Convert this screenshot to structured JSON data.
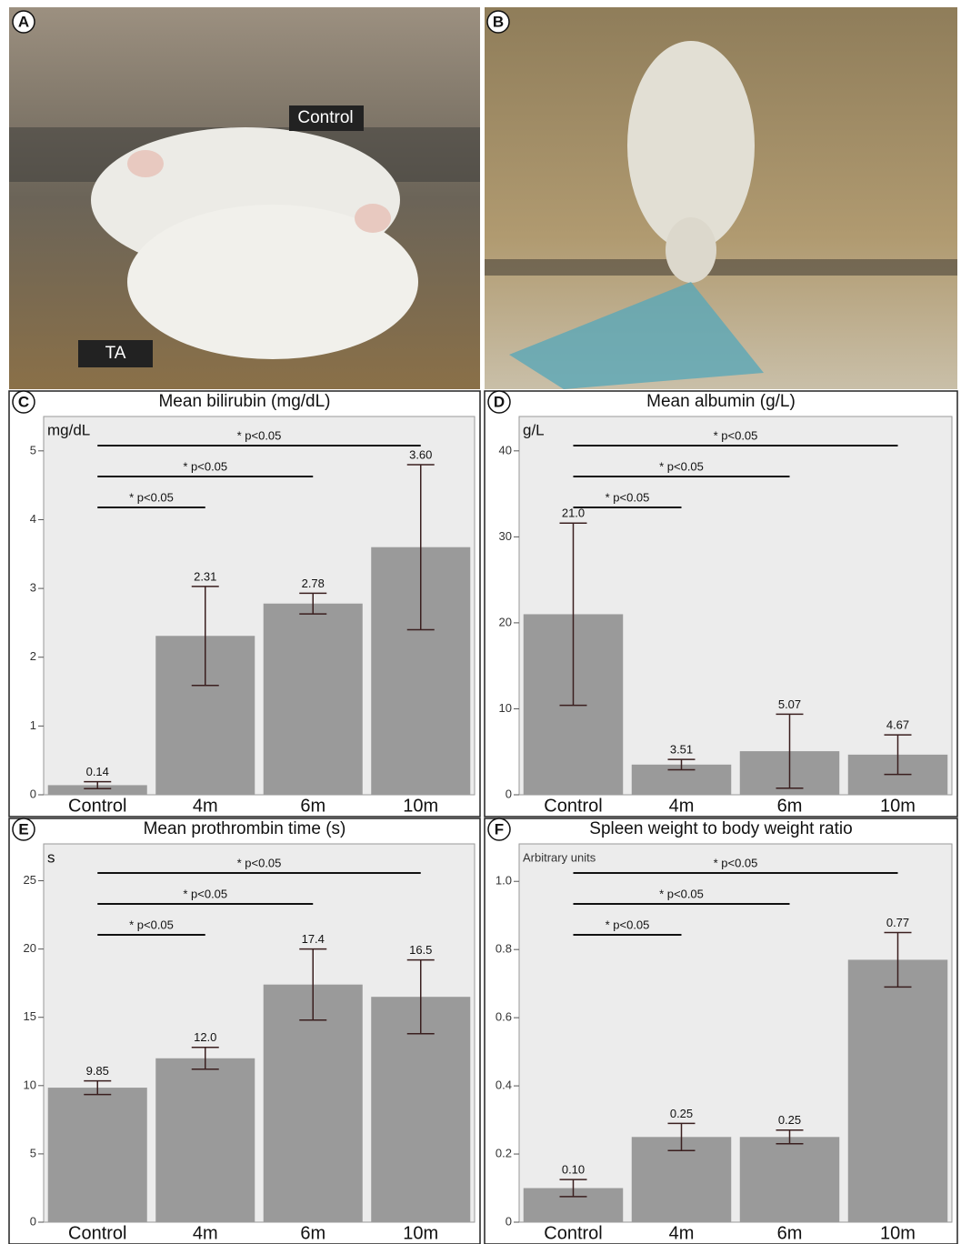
{
  "photos": [
    {
      "label": "A",
      "annotations": [
        "Control",
        "TA"
      ]
    },
    {
      "label": "B"
    }
  ],
  "chart_data": [
    {
      "type": "bar",
      "panel": "C",
      "title": "Mean bilirubin (mg/dL)",
      "y_label": "mg/dL",
      "categories": [
        "Control",
        "4m",
        "6m",
        "10m"
      ],
      "values": [
        0.14,
        2.31,
        2.78,
        3.6
      ],
      "value_labels": [
        "0.14",
        "2.31",
        "2.78",
        "3.60"
      ],
      "errors": [
        0.05,
        0.72,
        0.15,
        1.2
      ],
      "color": "#9a9a9a",
      "ylim": [
        0,
        5.5
      ],
      "yticks": [
        0,
        1,
        2,
        3,
        4,
        5
      ],
      "comparisons": [
        {
          "text": "* p<0.05",
          "from": "Control",
          "to": "10m"
        },
        {
          "text": "* p<0.05",
          "from": "Control",
          "to": "6m"
        },
        {
          "text": "* p<0.05",
          "from": "Control",
          "to": "4m"
        }
      ]
    },
    {
      "type": "bar",
      "panel": "D",
      "title": "Mean albumin (g/L)",
      "y_label": "g/L",
      "categories": [
        "Control",
        "4m",
        "6m",
        "10m"
      ],
      "values": [
        21.0,
        3.51,
        5.07,
        4.67
      ],
      "value_labels": [
        "21.0",
        "3.51",
        "5.07",
        "4.67"
      ],
      "errors": [
        10.6,
        0.6,
        4.3,
        2.3
      ],
      "color": "#9a9a9a",
      "ylim": [
        0,
        44
      ],
      "yticks": [
        0,
        10,
        20,
        30,
        40
      ],
      "comparisons": [
        {
          "text": "* p<0.05",
          "from": "Control",
          "to": "10m"
        },
        {
          "text": "* p<0.05",
          "from": "Control",
          "to": "6m"
        },
        {
          "text": "* p<0.05",
          "from": "Control",
          "to": "4m"
        }
      ]
    },
    {
      "type": "bar",
      "panel": "E",
      "title": "Mean prothrombin time (s)",
      "y_label": "s",
      "categories": [
        "Control",
        "4m",
        "6m",
        "10m"
      ],
      "values": [
        9.85,
        12.0,
        17.4,
        16.5
      ],
      "value_labels": [
        "9.85",
        "12.0",
        "17.4",
        "16.5"
      ],
      "errors": [
        0.5,
        0.8,
        2.6,
        2.7
      ],
      "color": "#9a9a9a",
      "ylim": [
        0,
        27.7
      ],
      "yticks": [
        0,
        5,
        10,
        15,
        20,
        25
      ],
      "comparisons": [
        {
          "text": "* p<0.05",
          "from": "Control",
          "to": "10m"
        },
        {
          "text": "* p<0.05",
          "from": "Control",
          "to": "6m"
        },
        {
          "text": "* p<0.05",
          "from": "Control",
          "to": "4m"
        }
      ]
    },
    {
      "type": "bar",
      "panel": "F",
      "title": "Spleen weight to body weight ratio",
      "y_label": "Arbitrary units",
      "categories": [
        "Control",
        "4m",
        "6m",
        "10m"
      ],
      "values": [
        0.1,
        0.25,
        0.25,
        0.77
      ],
      "value_labels": [
        "0.10",
        "0.25",
        "0.25",
        "0.77"
      ],
      "errors": [
        0.025,
        0.04,
        0.02,
        0.08
      ],
      "color": "#9a9a9a",
      "ylim": [
        0,
        1.11
      ],
      "yticks": [
        0,
        0.2,
        0.4,
        0.6,
        0.8,
        {
          "value": 1,
          "label": "1.0"
        }
      ],
      "comparisons": [
        {
          "text": "* p<0.05",
          "from": "Control",
          "to": "10m"
        },
        {
          "text": "* p<0.05",
          "from": "Control",
          "to": "6m"
        },
        {
          "text": "* p<0.05",
          "from": "Control",
          "to": "4m"
        }
      ]
    }
  ]
}
